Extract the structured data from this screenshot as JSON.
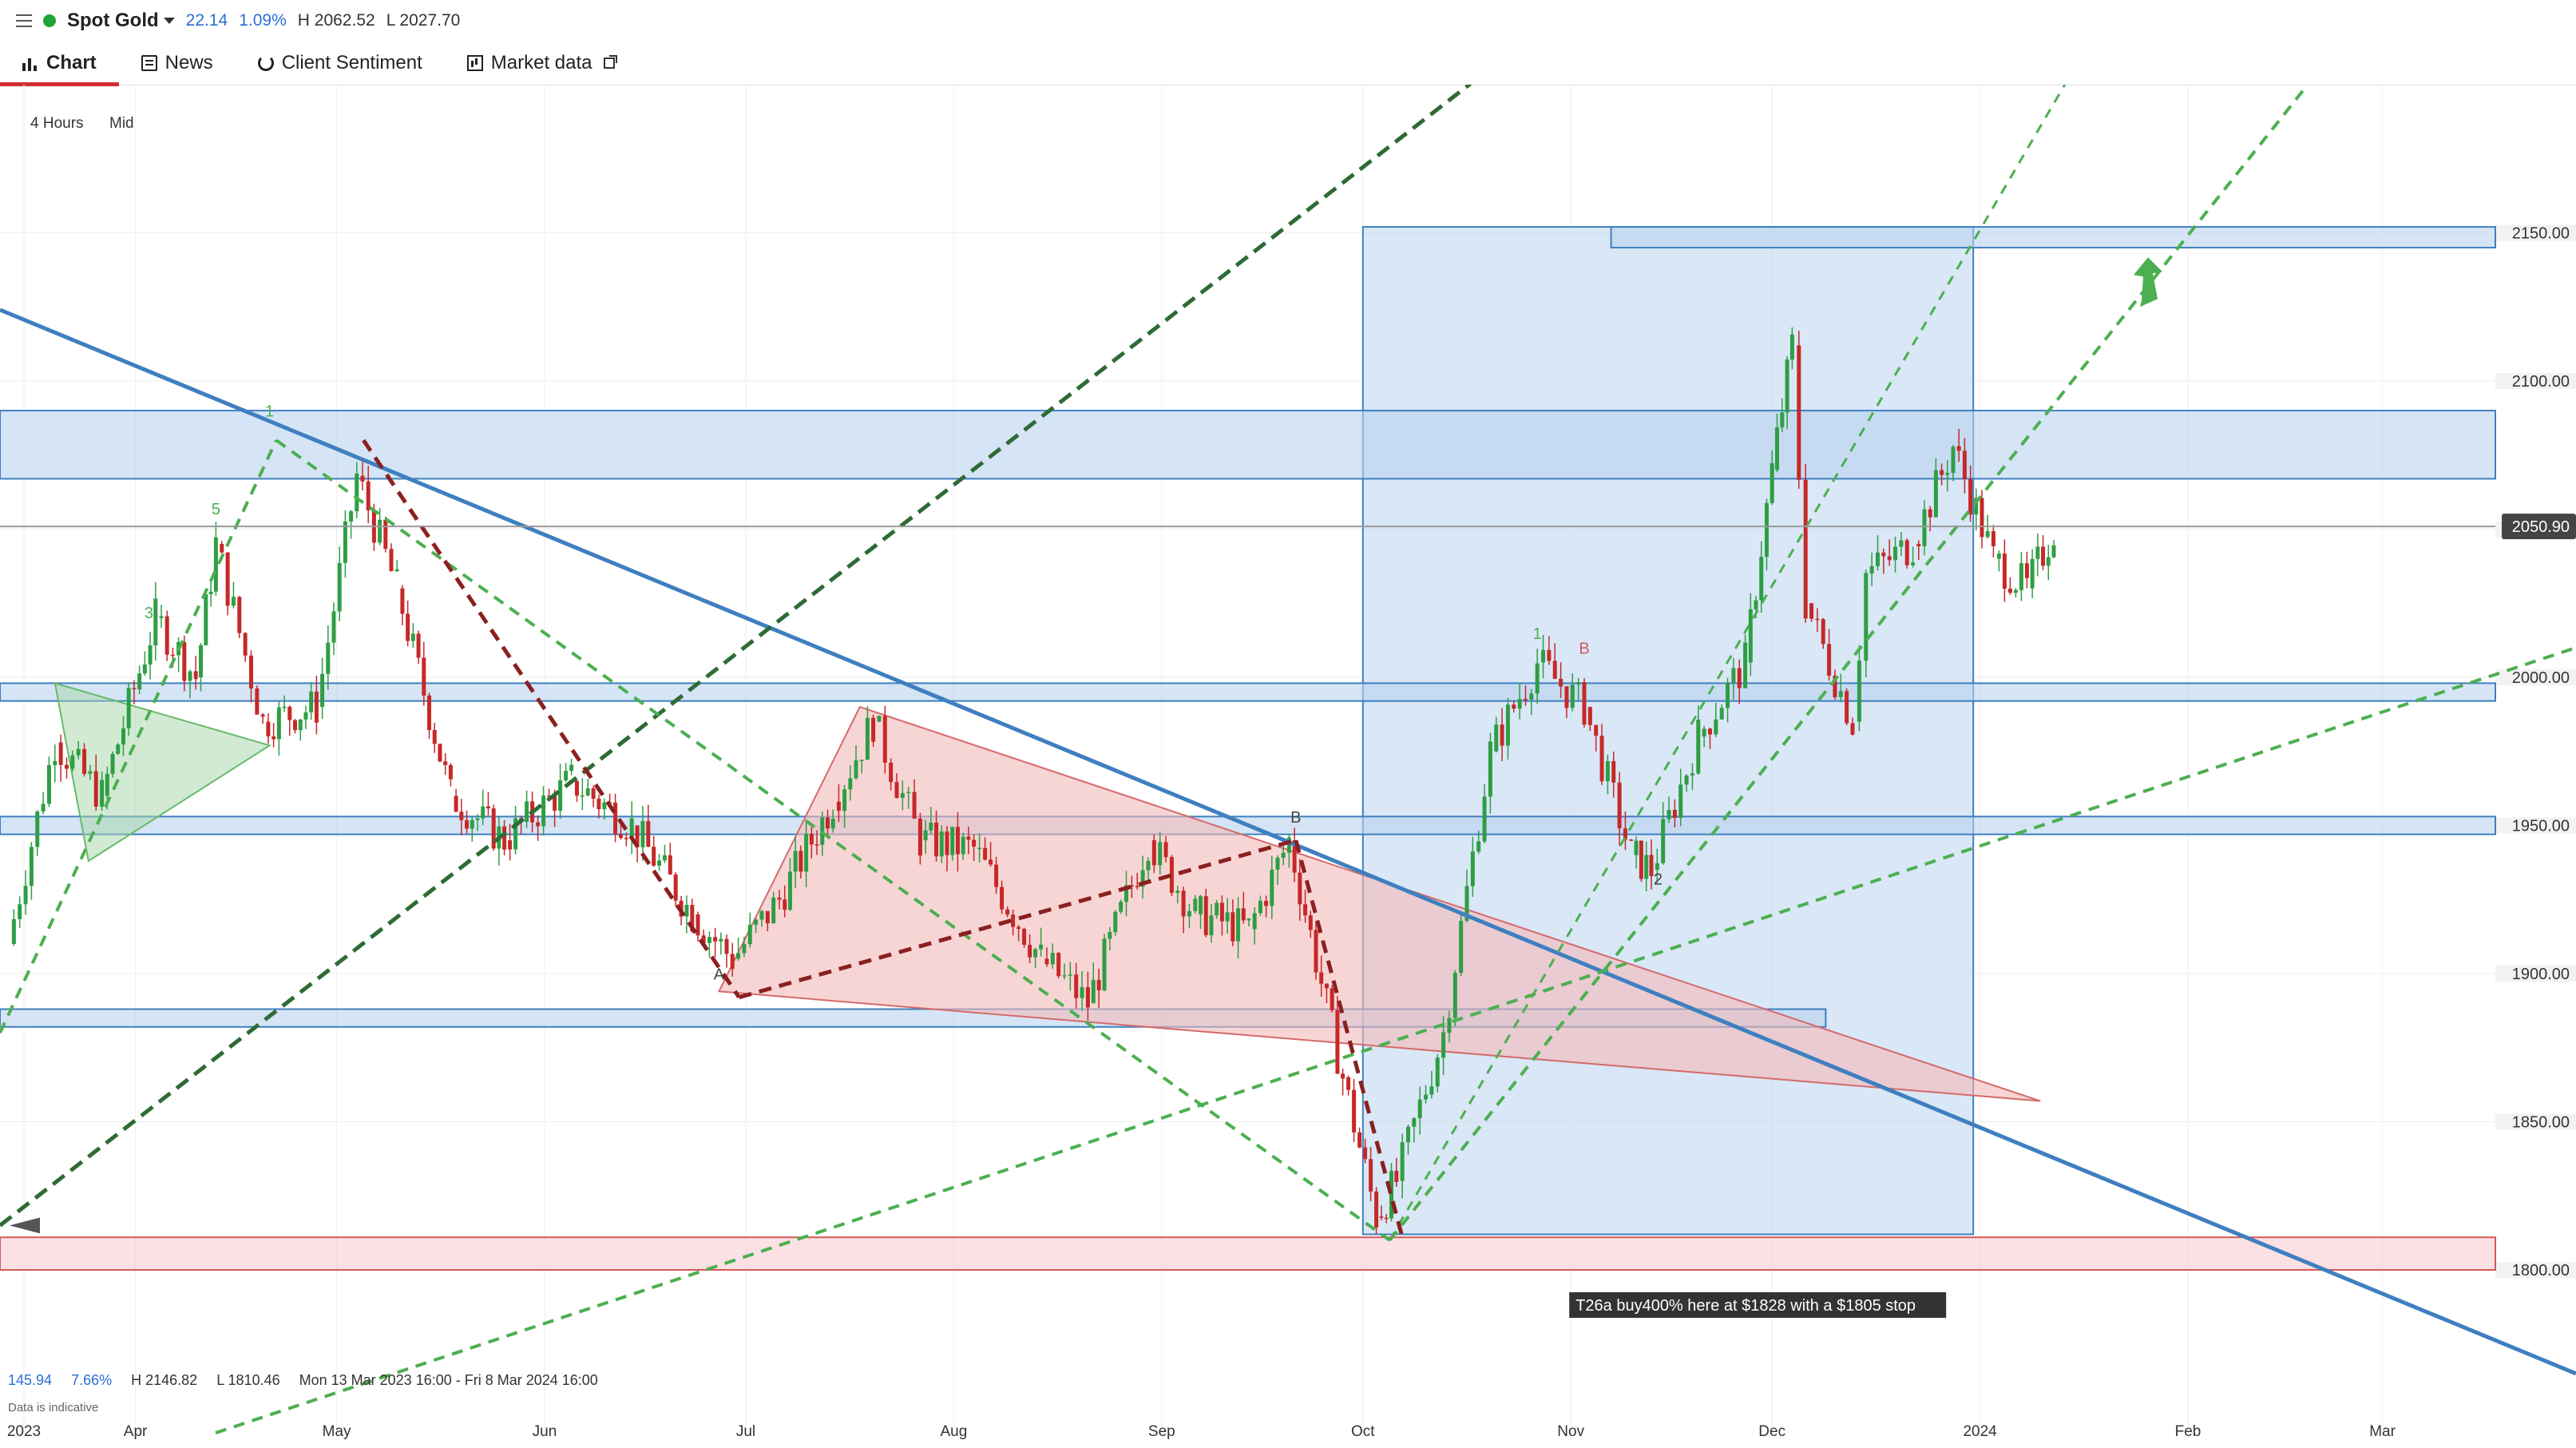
{
  "header": {
    "instrument": "Spot Gold",
    "change": "22.14",
    "change_pct": "1.09%",
    "high": "H 2062.52",
    "low": "L 2027.70"
  },
  "tabs": [
    {
      "label": "Chart",
      "icon": "chart-icon"
    },
    {
      "label": "News",
      "icon": "news-icon"
    },
    {
      "label": "Client Sentiment",
      "icon": "refresh-icon"
    },
    {
      "label": "Market data",
      "icon": "market-data-icon"
    }
  ],
  "toolbar": {
    "timeframe": "4 Hours",
    "price_type": "Mid"
  },
  "footer": {
    "change": "145.94",
    "change_pct": "7.66%",
    "high": "H 2146.82",
    "low": "L 1810.46",
    "range": "Mon 13 Mar 2023 16:00 - Fri 8 Mar 2024 16:00",
    "note": "Data is indicative"
  },
  "colors": {
    "up": "#2e9e44",
    "down": "#c62828",
    "zone": "#b9d3ee",
    "triangle": "#f4b9b9",
    "trend_blue": "#3f7fc0",
    "dash_green": "#4caf50",
    "dash_darkgreen": "#2e6b35",
    "dash_darkred": "#8b2020"
  },
  "chart_data": {
    "type": "candlestick",
    "instrument": "Spot Gold",
    "interval": "4 Hours",
    "x_tick_labels": [
      "2023",
      "Apr",
      "May",
      "Jun",
      "Jul",
      "Aug",
      "Sep",
      "Oct",
      "Nov",
      "Dec",
      "2024",
      "Feb",
      "Mar"
    ],
    "y_tick_labels": [
      "2150.00",
      "2100.00",
      "2050.00",
      "2000.00",
      "1950.00",
      "1900.00",
      "1850.00",
      "1800.00"
    ],
    "ylim": [
      1765,
      2190
    ],
    "last_price_label": "2050.90",
    "last_price": 2050.9,
    "price_path": [
      [
        "2023-03-13",
        1910
      ],
      [
        "2023-03-20",
        1978
      ],
      [
        "2023-03-27",
        1960
      ],
      [
        "2023-04-04",
        2020
      ],
      [
        "2023-04-10",
        2000
      ],
      [
        "2023-04-13",
        2045
      ],
      [
        "2023-04-20",
        1985
      ],
      [
        "2023-04-28",
        1990
      ],
      [
        "2023-05-04",
        2068
      ],
      [
        "2023-05-10",
        2030
      ],
      [
        "2023-05-18",
        1960
      ],
      [
        "2023-05-26",
        1945
      ],
      [
        "2023-06-05",
        1965
      ],
      [
        "2023-06-14",
        1950
      ],
      [
        "2023-06-23",
        1920
      ],
      [
        "2023-06-29",
        1905
      ],
      [
        "2023-07-06",
        1925
      ],
      [
        "2023-07-14",
        1958
      ],
      [
        "2023-07-20",
        1985
      ],
      [
        "2023-07-27",
        1945
      ],
      [
        "2023-08-04",
        1942
      ],
      [
        "2023-08-14",
        1905
      ],
      [
        "2023-08-21",
        1890
      ],
      [
        "2023-08-30",
        1945
      ],
      [
        "2023-09-06",
        1920
      ],
      [
        "2023-09-14",
        1915
      ],
      [
        "2023-09-20",
        1945
      ],
      [
        "2023-09-28",
        1865
      ],
      [
        "2023-10-03",
        1818
      ],
      [
        "2023-10-06",
        1830
      ],
      [
        "2023-10-13",
        1880
      ],
      [
        "2023-10-20",
        1975
      ],
      [
        "2023-10-27",
        2005
      ],
      [
        "2023-11-03",
        1990
      ],
      [
        "2023-11-10",
        1940
      ],
      [
        "2023-11-13",
        1935
      ],
      [
        "2023-11-20",
        1980
      ],
      [
        "2023-11-27",
        2005
      ],
      [
        "2023-12-01",
        2070
      ],
      [
        "2023-12-04",
        2112
      ],
      [
        "2023-12-06",
        2025
      ],
      [
        "2023-12-13",
        1985
      ],
      [
        "2023-12-15",
        2035
      ],
      [
        "2023-12-22",
        2045
      ],
      [
        "2023-12-28",
        2078
      ],
      [
        "2024-01-03",
        2040
      ],
      [
        "2024-01-08",
        2030
      ],
      [
        "2024-01-12",
        2050
      ]
    ],
    "zones": [
      {
        "kind": "resistance",
        "from": 2067,
        "to": 2090
      },
      {
        "kind": "support",
        "from": 1992,
        "to": 1998
      },
      {
        "kind": "support",
        "from": 1947,
        "to": 1953
      },
      {
        "kind": "support",
        "from": 1882,
        "to": 1888
      },
      {
        "kind": "support",
        "from": 1800,
        "to": 1811
      },
      {
        "kind": "target",
        "from": 2145,
        "to": 2152
      }
    ],
    "annotations": [
      "1",
      "3",
      "5",
      "1",
      "B",
      "B",
      "A",
      "2"
    ],
    "callout": "T26a buy400% here at $1828 with a $1805 stop"
  }
}
